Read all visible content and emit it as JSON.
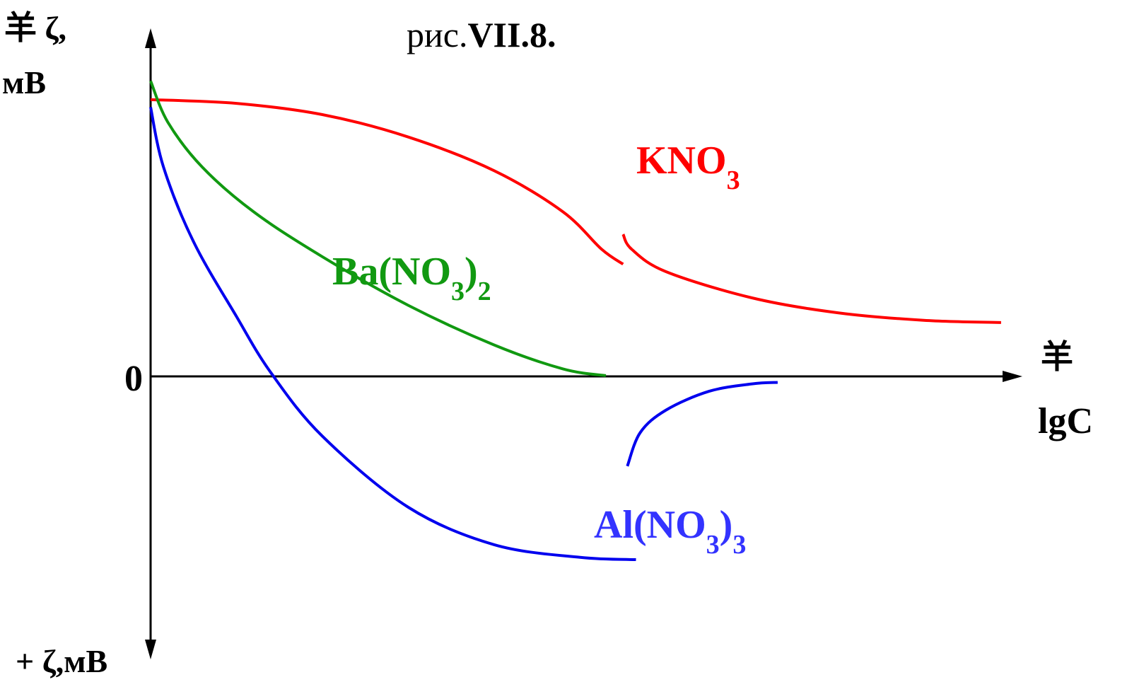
{
  "chart_data": {
    "type": "line",
    "title_prefix": "рис.",
    "title_number": "VII.8.",
    "ylabel_top_line1": "羊 ζ,",
    "ylabel_top_line2": "мВ",
    "ylabel_bottom": "+ ζ,мВ",
    "xlabel_line1": "羊",
    "xlabel_line2": "lgC",
    "origin_label": "0",
    "xlim": [
      0,
      10
    ],
    "ylim": [
      -3.6,
      4.2
    ],
    "series": [
      {
        "label": {
          "base": "KNO",
          "sub1": "3",
          "mid": "",
          "sub2": ""
        },
        "color": "#ff0000",
        "label_color": "#ff0000",
        "segments": [
          [
            [
              0.0,
              3.7
            ],
            [
              1.0,
              3.65
            ],
            [
              2.0,
              3.5
            ],
            [
              3.0,
              3.2
            ],
            [
              4.0,
              2.75
            ],
            [
              4.8,
              2.2
            ],
            [
              5.25,
              1.7
            ],
            [
              5.5,
              1.5
            ]
          ],
          [
            [
              5.5,
              1.9
            ],
            [
              5.6,
              1.7
            ],
            [
              6.0,
              1.4
            ],
            [
              7.0,
              1.05
            ],
            [
              8.0,
              0.85
            ],
            [
              9.0,
              0.75
            ],
            [
              9.9,
              0.72
            ]
          ]
        ]
      },
      {
        "label": {
          "base": "Ba(NO",
          "sub1": "3",
          "mid": ")",
          "sub2": "2"
        },
        "color": "#119911",
        "label_color": "#119911",
        "segments": [
          [
            [
              0.0,
              3.95
            ],
            [
              0.2,
              3.4
            ],
            [
              0.6,
              2.8
            ],
            [
              1.2,
              2.2
            ],
            [
              2.0,
              1.6
            ],
            [
              3.0,
              0.95
            ],
            [
              4.0,
              0.42
            ],
            [
              4.8,
              0.1
            ],
            [
              5.3,
              0.01
            ]
          ]
        ]
      },
      {
        "label": {
          "base": "Al(NO",
          "sub1": "3",
          "mid": ")",
          "sub2": "3"
        },
        "color": "#0000ee",
        "label_color": "#3333ff",
        "segments": [
          [
            [
              0.0,
              3.6
            ],
            [
              0.15,
              2.8
            ],
            [
              0.5,
              1.8
            ],
            [
              1.0,
              0.8
            ],
            [
              1.4,
              0.05
            ],
            [
              2.0,
              -0.8
            ],
            [
              3.0,
              -1.75
            ],
            [
              4.0,
              -2.25
            ],
            [
              5.0,
              -2.42
            ],
            [
              5.65,
              -2.45
            ]
          ],
          [
            [
              5.55,
              -1.2
            ],
            [
              5.7,
              -0.75
            ],
            [
              6.0,
              -0.45
            ],
            [
              6.5,
              -0.2
            ],
            [
              7.0,
              -0.1
            ],
            [
              7.3,
              -0.08
            ]
          ]
        ]
      }
    ]
  }
}
